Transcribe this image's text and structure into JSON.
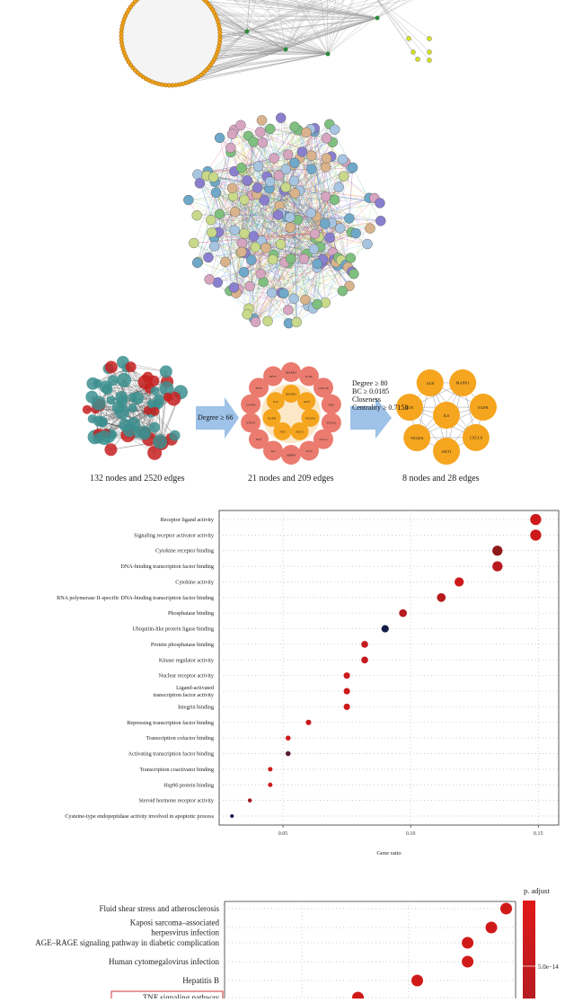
{
  "hub_panel": {
    "captions": [
      "132 nodes and 2520 edges",
      "21 nodes and 209 edges",
      "8 nodes and 28 edges"
    ],
    "arrow1_label": "Degree ≥ 66",
    "arrow2_label_lines": [
      "Degree ≥ 80",
      "BC ≥ 0.0185",
      "Closeness",
      "Centrality ≥ 0.7158"
    ],
    "ring21_outer": [
      "MAPK3",
      "IL1B",
      "CXCL8",
      "FOS",
      "PTGS2",
      "CCL2",
      "IL10",
      "MMP9",
      "IL4",
      "EGF",
      "STAT3",
      "CASP3",
      "TP53",
      "MYC"
    ],
    "ring21_inner": [
      "MAPK1",
      "ALB",
      "VEGFA",
      "AKT1",
      "JUN",
      "EGFR",
      "IL6"
    ],
    "ring8_outer": [
      "ALB",
      "MAPK1",
      "EGFR",
      "CXCL8",
      "AKT1",
      "VEGFA",
      "JUN"
    ],
    "ring8_center": "IL6"
  },
  "chart_data": [
    {
      "type": "scatter",
      "title": "",
      "xlabel": "Gene ratio",
      "ylabel": "",
      "xticks": [
        "0.05",
        "0.10",
        "0.15"
      ],
      "xlim": [
        0.025,
        0.158
      ],
      "grid": true,
      "categories": [
        "Receptor ligand activity",
        "Signaling receptor activator activity",
        "Cytokine receptor binding",
        "DNA-binding transcription factor binding",
        "Cytokine activity",
        "RNA polymerase II-specific DNA-binding transcription factor binding",
        "Phosphatase binding",
        "Ubiquitin-like protein ligase binding",
        "Protein phosphatase binding",
        "Kinase regulator activity",
        "Nuclear receptor activity",
        "Ligand-activated transcription factor activity",
        "Integrin binding",
        "Repressing transcription factor binding",
        "Transcription cofactor binding",
        "Activating transcription factor binding",
        "Transcription coactivator binding",
        "Hsp90 protein binding",
        "Steroid hormone receptor activity",
        "Cysteine-type endopeptidase activity involved in apoptotic process"
      ],
      "category_lines": [
        [
          "Receptor ligand activity"
        ],
        [
          "Signaling receptor activator activity"
        ],
        [
          "Cytokine receptor binding"
        ],
        [
          "DNA-binding transcription factor binding"
        ],
        [
          "Cytokine activity"
        ],
        [
          "RNA polymerase II-specific DNA-binding transcription factor binding"
        ],
        [
          "Phosphatase binding"
        ],
        [
          "Ubiquitin-like protein ligase binding"
        ],
        [
          "Protein phosphatase binding"
        ],
        [
          "Kinase regulator activity"
        ],
        [
          "Nuclear receptor activity"
        ],
        [
          "Ligand-activated",
          "transcription factor activity"
        ],
        [
          "Integrin binding"
        ],
        [
          "Repressing transcription factor binding"
        ],
        [
          "Transcription cofactor binding"
        ],
        [
          "Activating transcription factor binding"
        ],
        [
          "Transcription coactivator binding"
        ],
        [
          "Hsp90 protein binding"
        ],
        [
          "Steroid hormone receptor activity"
        ],
        [
          "Cysteine-type endopeptidase activity involved in apoptotic process"
        ]
      ],
      "gene_ratio": [
        0.149,
        0.149,
        0.134,
        0.134,
        0.119,
        0.112,
        0.097,
        0.09,
        0.082,
        0.082,
        0.075,
        0.075,
        0.075,
        0.06,
        0.052,
        0.052,
        0.045,
        0.045,
        0.037,
        0.03
      ],
      "count": [
        20,
        20,
        18,
        18,
        16,
        15,
        13,
        12,
        11,
        11,
        10,
        10,
        10,
        8,
        7,
        7,
        6,
        6,
        5,
        4
      ],
      "colors": [
        "#cc1a1a",
        "#cc1a1a",
        "#8e1b1b",
        "#b81a1f",
        "#cc1a1a",
        "#b81a1f",
        "#b81a1f",
        "#141c4a",
        "#c41a1f",
        "#c41a1f",
        "#cc1a1a",
        "#cc1a1a",
        "#cc1a1a",
        "#c41a1f",
        "#cc1a1a",
        "#5a1a3a",
        "#cc1a1a",
        "#cc1a1a",
        "#a31a24",
        "#141c4a"
      ]
    },
    {
      "type": "scatter",
      "title": "",
      "legend_title": "p. adjust",
      "legend_tick": "5.0e−14",
      "categories": [
        "Fluid shear stress and atherosclerosis",
        "Kaposi sarcoma–associated herpesvirus infection",
        "AGE–RAGE signaling pathway in diabetic complication",
        "Human cytomegalovirus infection",
        "Hepatitis B",
        "TNF signaling pathway"
      ],
      "category_lines": [
        [
          "Fluid shear stress and atherosclerosis"
        ],
        [
          "Kaposi sarcoma–associated",
          "herpesvirus infection"
        ],
        [
          "AGE–RAGE signaling pathway in diabetic complication"
        ],
        [
          "Human cytomegalovirus infection"
        ],
        [
          "Hepatitis B"
        ],
        [
          "TNF signaling pathway"
        ]
      ],
      "highlighted": "TNF signaling pathway",
      "gene_ratio": [
        0.255,
        0.25,
        0.242,
        0.242,
        0.225,
        0.205
      ],
      "colors": [
        "#d01a1a",
        "#d01a1a",
        "#d01a1a",
        "#d01a1a",
        "#d01a1a",
        "#d01a1a"
      ]
    }
  ]
}
